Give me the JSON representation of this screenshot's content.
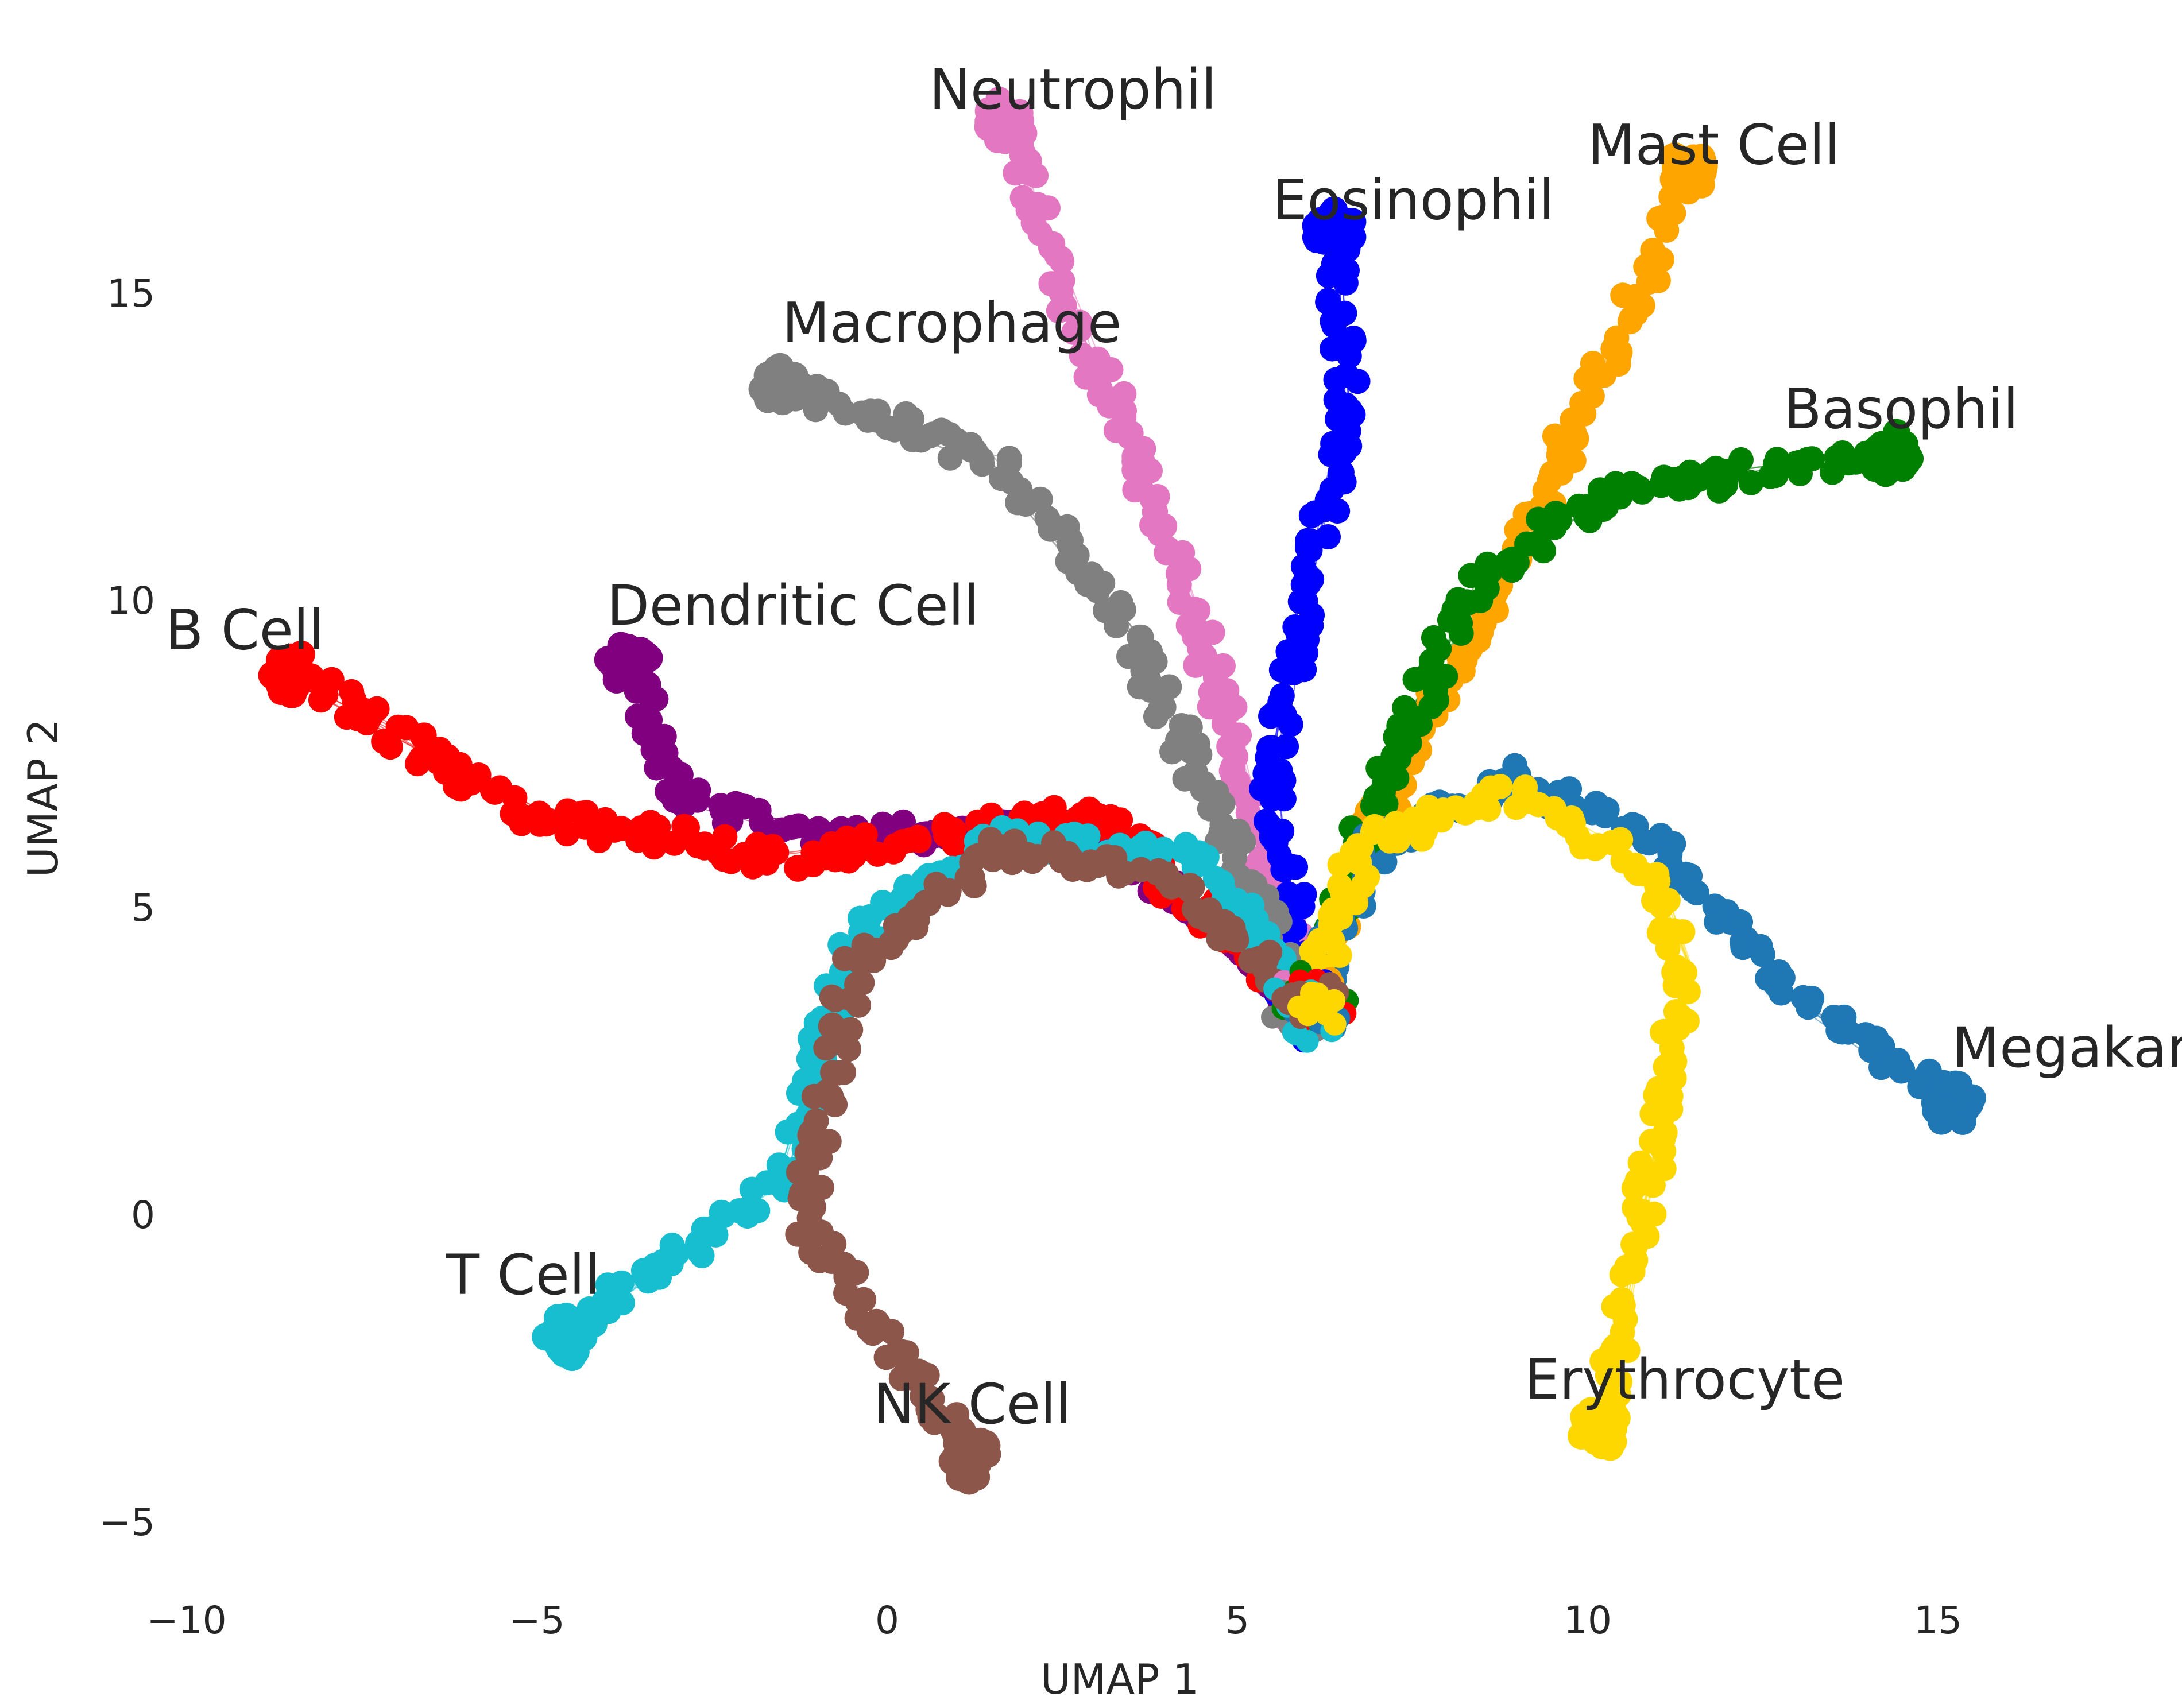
{
  "chart_data": {
    "type": "scatter",
    "title": "",
    "xlabel": "UMAP 1",
    "ylabel": "UMAP 2",
    "xlim": [
      -10,
      18
    ],
    "ylim": [
      -6,
      19
    ],
    "grid": false,
    "xticks": [
      -10,
      -5,
      0,
      5,
      10,
      15
    ],
    "xtick_labels": [
      "−10",
      "−5",
      "0",
      "5",
      "10",
      "15"
    ],
    "yticks": [
      -5,
      0,
      5,
      10,
      15
    ],
    "ytick_labels": [
      "−5",
      "0",
      "5",
      "10",
      "15"
    ],
    "root": [
      6,
      3.4
    ],
    "series": [
      {
        "name": "Neutrophil",
        "color": "#e377c2",
        "label_at": [
          0.6,
          18.0
        ],
        "path": [
          [
            6,
            3.4
          ],
          [
            5.0,
            7.5
          ],
          [
            4.2,
            10.5
          ],
          [
            3.3,
            13.0
          ],
          [
            2.4,
            15.5
          ],
          [
            1.7,
            17.8
          ]
        ]
      },
      {
        "name": "Mast Cell",
        "color": "#ffa500",
        "label_at": [
          10.0,
          17.1
        ],
        "path": [
          [
            6,
            3.4
          ],
          [
            7.0,
            6.5
          ],
          [
            8.3,
            9.5
          ],
          [
            9.3,
            11.5
          ],
          [
            10.8,
            15.2
          ],
          [
            11.4,
            17.0
          ]
        ]
      },
      {
        "name": "Eosinophil",
        "color": "#0000ff",
        "label_at": [
          5.5,
          16.2
        ],
        "path": [
          [
            6,
            3.4
          ],
          [
            5.5,
            7.0
          ],
          [
            6.0,
            10.5
          ],
          [
            6.6,
            13.0
          ],
          [
            6.4,
            16.0
          ]
        ]
      },
      {
        "name": "Macrophage",
        "color": "#808080",
        "label_at": [
          -1.5,
          14.2
        ],
        "path": [
          [
            6,
            3.4
          ],
          [
            4.5,
            7.0
          ],
          [
            3.5,
            9.5
          ],
          [
            1.5,
            12.3
          ],
          [
            -1.5,
            13.5
          ]
        ]
      },
      {
        "name": "Basophil",
        "color": "#008000",
        "label_at": [
          12.8,
          12.8
        ],
        "path": [
          [
            6,
            3.4
          ],
          [
            7.2,
            7.5
          ],
          [
            8.5,
            10.3
          ],
          [
            10.2,
            11.7
          ],
          [
            14.3,
            12.4
          ]
        ]
      },
      {
        "name": "Dendritic Cell",
        "color": "#800080",
        "label_at": [
          -4.0,
          9.6
        ],
        "path": [
          [
            6,
            3.4
          ],
          [
            3.0,
            6.2
          ],
          [
            -1.0,
            6.2
          ],
          [
            -3.0,
            6.8
          ],
          [
            -3.7,
            9.0
          ]
        ]
      },
      {
        "name": "B Cell",
        "color": "#ff0000",
        "label_at": [
          -10.3,
          9.2
        ],
        "path": [
          [
            6,
            3.4
          ],
          [
            3.0,
            6.5
          ],
          [
            -1.5,
            5.8
          ],
          [
            -5.0,
            6.5
          ],
          [
            -8.5,
            8.8
          ]
        ]
      },
      {
        "name": "Megakaryocyte",
        "color": "#1f77b4",
        "label_at": [
          15.2,
          2.4
        ],
        "path": [
          [
            6,
            3.4
          ],
          [
            7.0,
            6.0
          ],
          [
            9.0,
            7.1
          ],
          [
            11.0,
            6.0
          ],
          [
            13.0,
            3.5
          ],
          [
            15.2,
            1.8
          ]
        ]
      },
      {
        "name": "T Cell",
        "color": "#17becf",
        "label_at": [
          -6.3,
          -1.3
        ],
        "path": [
          [
            6,
            3.4
          ],
          [
            4.5,
            5.8
          ],
          [
            1.5,
            6.1
          ],
          [
            -0.5,
            4.5
          ],
          [
            -1.5,
            0.5
          ],
          [
            -4.6,
            -2.0
          ]
        ]
      },
      {
        "name": "NK Cell",
        "color": "#8c564b",
        "label_at": [
          -0.2,
          -3.4
        ],
        "path": [
          [
            6,
            3.4
          ],
          [
            4.0,
            5.5
          ],
          [
            1.5,
            6.0
          ],
          [
            -0.5,
            4.0
          ],
          [
            -1.2,
            0.0
          ],
          [
            1.2,
            -4.0
          ]
        ]
      },
      {
        "name": "Erythrocyte",
        "color": "#ffd700",
        "label_at": [
          9.1,
          -3.0
        ],
        "path": [
          [
            6,
            3.4
          ],
          [
            6.8,
            6.0
          ],
          [
            9.0,
            6.9
          ],
          [
            11.0,
            5.5
          ],
          [
            11.4,
            4.0
          ],
          [
            10.2,
            -3.5
          ]
        ]
      }
    ]
  }
}
